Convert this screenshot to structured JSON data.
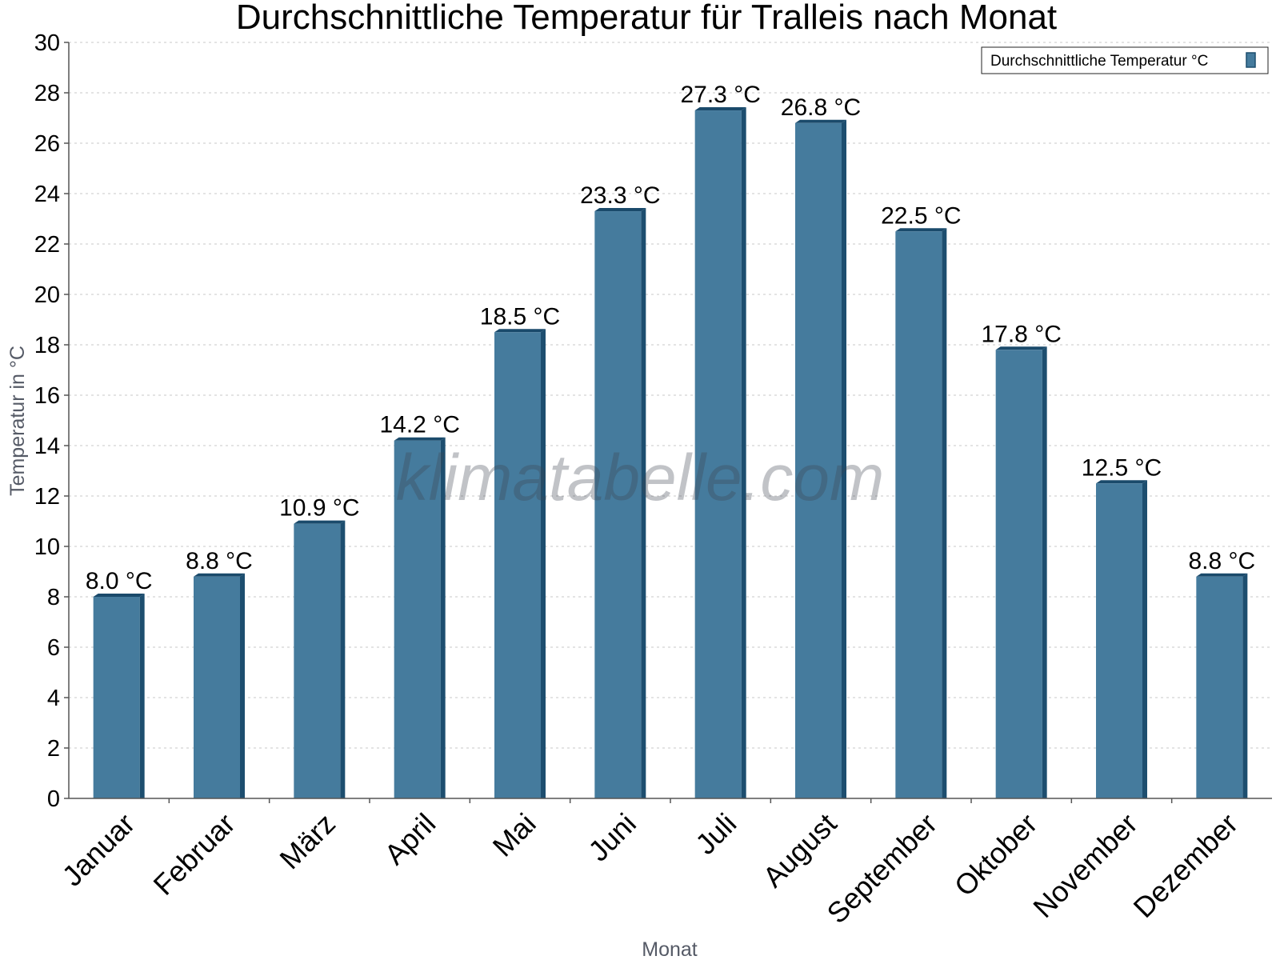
{
  "chart_data": {
    "type": "bar",
    "title": "Durchschnittliche Temperatur für Tralleis nach Monat",
    "xlabel": "Monat",
    "ylabel": "Temperatur in °C",
    "ylim": [
      0,
      30
    ],
    "yticks": [
      "0",
      "2",
      "4",
      "6",
      "8",
      "10",
      "12",
      "14",
      "16",
      "18",
      "20",
      "22",
      "24",
      "26",
      "28",
      "30"
    ],
    "grid": true,
    "legend_position": "top-right",
    "categories": [
      "Januar",
      "Februar",
      "März",
      "April",
      "Mai",
      "Juni",
      "Juli",
      "August",
      "September",
      "Oktober",
      "November",
      "Dezember"
    ],
    "series": [
      {
        "name": "Durchschnittliche Temperatur °C",
        "values": [
          8.0,
          8.8,
          10.9,
          14.2,
          18.5,
          23.3,
          27.3,
          26.8,
          22.5,
          17.8,
          12.5,
          8.8
        ],
        "labels": [
          "8.0 °C",
          "8.8 °C",
          "10.9 °C",
          "14.2 °C",
          "18.5 °C",
          "23.3 °C",
          "27.3 °C",
          "26.8 °C",
          "22.5 °C",
          "17.8 °C",
          "12.5 °C",
          "8.8 °C"
        ]
      }
    ],
    "colors": {
      "bar_face": "#457b9d",
      "bar_side": "#1d4e6f",
      "bar_top": "#1a4a6b"
    },
    "watermark": "klimatabelle.com"
  }
}
